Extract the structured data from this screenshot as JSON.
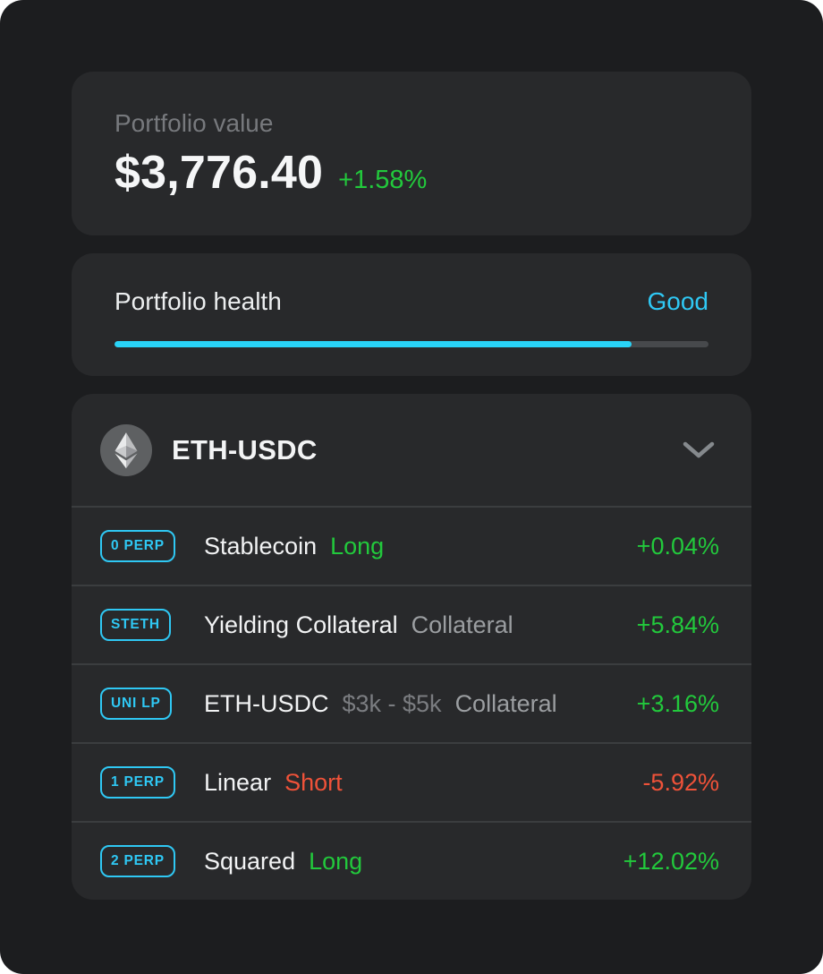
{
  "theme": {
    "accent_cyan": "#2fc8f4",
    "bar_fill_cyan": "#29d3f7",
    "positive_green": "#22c93c",
    "negative_red": "#ef5239",
    "card_bg": "#28292b",
    "page_bg": "#1c1d1f"
  },
  "portfolio_value": {
    "label": "Portfolio value",
    "value": "$3,776.40",
    "change": "+1.58%",
    "change_tone": "green"
  },
  "portfolio_health": {
    "label": "Portfolio health",
    "status": "Good",
    "status_tone": "cyan",
    "progress_percent": 87
  },
  "pool": {
    "title": "ETH-USDC",
    "icon": "ethereum-icon",
    "expander": "chevron-down-icon"
  },
  "positions": [
    {
      "badge": "0 PERP",
      "name": "Stablecoin",
      "tags": [
        {
          "text": "Long",
          "tone": "green"
        }
      ],
      "change": "+0.04%",
      "change_tone": "green"
    },
    {
      "badge": "STETH",
      "name": "Yielding Collateral",
      "tags": [
        {
          "text": "Collateral",
          "tone": "gray"
        }
      ],
      "change": "+5.84%",
      "change_tone": "green"
    },
    {
      "badge": "UNI LP",
      "name": "ETH-USDC",
      "tags": [
        {
          "text": "$3k - $5k",
          "tone": "dim"
        },
        {
          "text": "Collateral",
          "tone": "gray"
        }
      ],
      "change": "+3.16%",
      "change_tone": "green"
    },
    {
      "badge": "1 PERP",
      "name": "Linear",
      "tags": [
        {
          "text": "Short",
          "tone": "red"
        }
      ],
      "change": "-5.92%",
      "change_tone": "red"
    },
    {
      "badge": "2 PERP",
      "name": "Squared",
      "tags": [
        {
          "text": "Long",
          "tone": "green"
        }
      ],
      "change": "+12.02%",
      "change_tone": "green"
    }
  ]
}
